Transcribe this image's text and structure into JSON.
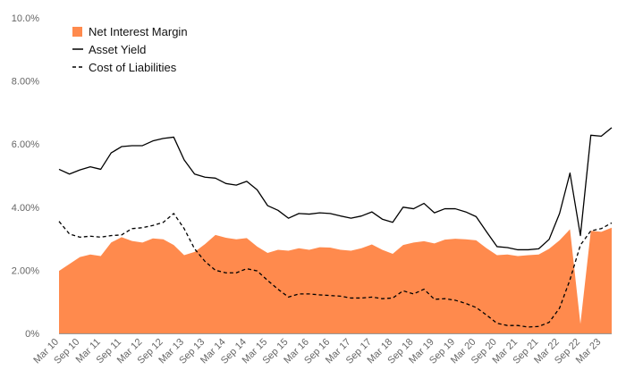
{
  "chart_data": {
    "type": "area+line",
    "title": "",
    "xlabel": "",
    "ylabel": "",
    "ylim": [
      0,
      10
    ],
    "y_ticks": [
      "0%",
      "2.00%",
      "4.00%",
      "6.00%",
      "8.00%",
      "10.0%"
    ],
    "y_tick_values": [
      0,
      2,
      4,
      6,
      8,
      10
    ],
    "x_tick_labels": [
      "Mar 10",
      "Sep 10",
      "Mar 11",
      "Sep 11",
      "Mar 12",
      "Sep 12",
      "Mar 13",
      "Sep 13",
      "Mar 14",
      "Sep 14",
      "Mar 15",
      "Sep 15",
      "Mar 16",
      "Sep 16",
      "Mar 17",
      "Sep 17",
      "Mar 18",
      "Sep 18",
      "Mar 19",
      "Sep 19",
      "Mar 20",
      "Sep 20",
      "Mar 21",
      "Sep 21",
      "Mar 22",
      "Sep 22",
      "Mar 23"
    ],
    "x": [
      "Mar 10",
      "Jun 10",
      "Sep 10",
      "Dec 10",
      "Mar 11",
      "Jun 11",
      "Sep 11",
      "Dec 11",
      "Mar 12",
      "Jun 12",
      "Sep 12",
      "Dec 12",
      "Mar 13",
      "Jun 13",
      "Sep 13",
      "Dec 13",
      "Mar 14",
      "Jun 14",
      "Sep 14",
      "Dec 14",
      "Mar 15",
      "Jun 15",
      "Sep 15",
      "Dec 15",
      "Mar 16",
      "Jun 16",
      "Sep 16",
      "Dec 16",
      "Mar 17",
      "Jun 17",
      "Sep 17",
      "Dec 17",
      "Mar 18",
      "Jun 18",
      "Sep 18",
      "Dec 18",
      "Mar 19",
      "Jun 19",
      "Sep 19",
      "Dec 19",
      "Mar 20",
      "Jun 20",
      "Sep 20",
      "Dec 20",
      "Mar 21",
      "Jun 21",
      "Sep 21",
      "Dec 21",
      "Mar 22",
      "Jun 22",
      "Sep 22",
      "Dec 22",
      "Mar 23",
      "Jun 23"
    ],
    "legend_placement": "top-left",
    "grid": false,
    "series": [
      {
        "name": "Net Interest Margin",
        "kind": "area",
        "color": "#ff8a4d",
        "values": [
          1.98,
          2.2,
          2.42,
          2.5,
          2.45,
          2.88,
          3.05,
          2.93,
          2.88,
          3.01,
          2.98,
          2.8,
          2.48,
          2.58,
          2.83,
          3.12,
          3.03,
          2.98,
          3.02,
          2.75,
          2.55,
          2.65,
          2.62,
          2.7,
          2.65,
          2.73,
          2.72,
          2.65,
          2.62,
          2.7,
          2.82,
          2.65,
          2.52,
          2.8,
          2.88,
          2.92,
          2.85,
          2.97,
          3.0,
          2.98,
          2.95,
          2.7,
          2.48,
          2.5,
          2.45,
          2.48,
          2.5,
          2.68,
          2.95,
          3.3,
          0.3,
          3.25,
          3.22,
          3.35
        ]
      },
      {
        "name": "Asset Yield",
        "kind": "line",
        "color": "#000000",
        "values": [
          5.2,
          5.05,
          5.18,
          5.28,
          5.2,
          5.72,
          5.92,
          5.95,
          5.95,
          6.1,
          6.18,
          6.22,
          5.5,
          5.05,
          4.95,
          4.92,
          4.75,
          4.7,
          4.82,
          4.55,
          4.05,
          3.9,
          3.65,
          3.8,
          3.78,
          3.82,
          3.8,
          3.72,
          3.65,
          3.72,
          3.85,
          3.62,
          3.52,
          4.0,
          3.95,
          4.12,
          3.82,
          3.95,
          3.95,
          3.85,
          3.7,
          3.22,
          2.75,
          2.72,
          2.65,
          2.65,
          2.68,
          2.98,
          3.8,
          5.08,
          3.1,
          6.28,
          6.25,
          6.52
        ]
      },
      {
        "name": "Cost of Liabilities",
        "kind": "line-dashed",
        "color": "#000000",
        "values": [
          3.55,
          3.15,
          3.05,
          3.08,
          3.05,
          3.1,
          3.12,
          3.32,
          3.35,
          3.42,
          3.52,
          3.8,
          3.32,
          2.68,
          2.28,
          2.0,
          1.92,
          1.92,
          2.05,
          1.98,
          1.68,
          1.4,
          1.15,
          1.25,
          1.25,
          1.22,
          1.2,
          1.18,
          1.12,
          1.12,
          1.15,
          1.1,
          1.12,
          1.35,
          1.25,
          1.4,
          1.08,
          1.1,
          1.05,
          0.95,
          0.82,
          0.58,
          0.32,
          0.25,
          0.25,
          0.2,
          0.22,
          0.35,
          0.8,
          1.7,
          2.8,
          3.25,
          3.32,
          3.5
        ]
      }
    ]
  }
}
